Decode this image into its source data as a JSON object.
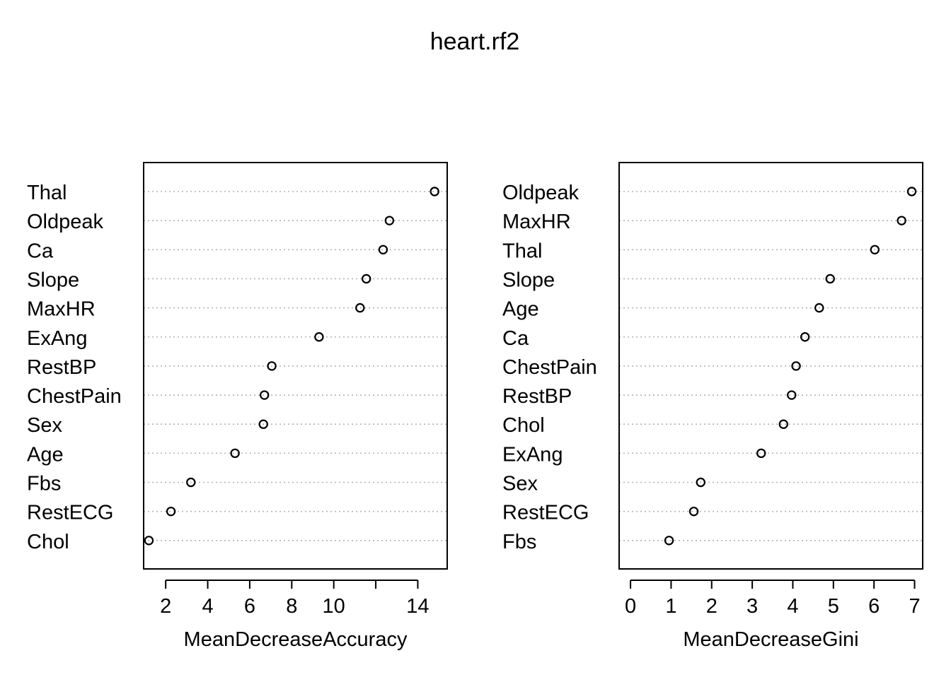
{
  "title": "heart.rf2",
  "chart_data": [
    {
      "type": "scatter",
      "xlabel": "MeanDecreaseAccuracy",
      "xlim": [
        0.95,
        15.4
      ],
      "xticks": [
        2,
        4,
        6,
        8,
        10,
        14
      ],
      "minor_ticks": [
        12
      ],
      "grid": "dotted horizontal",
      "categories": [
        "Thal",
        "Oldpeak",
        "Ca",
        "Slope",
        "MaxHR",
        "ExAng",
        "RestBP",
        "ChestPain",
        "Sex",
        "Age",
        "Fbs",
        "RestECG",
        "Chol"
      ],
      "values": [
        14.8,
        12.65,
        12.35,
        11.55,
        11.25,
        9.3,
        7.05,
        6.7,
        6.65,
        5.3,
        3.2,
        2.25,
        1.2
      ]
    },
    {
      "type": "scatter",
      "xlabel": "MeanDecreaseGini",
      "xlim": [
        -0.28,
        7.2
      ],
      "xticks": [
        0,
        1,
        2,
        3,
        4,
        5,
        6,
        7
      ],
      "minor_ticks": [],
      "grid": "dotted horizontal",
      "categories": [
        "Oldpeak",
        "MaxHR",
        "Thal",
        "Slope",
        "Age",
        "Ca",
        "ChestPain",
        "RestBP",
        "Chol",
        "ExAng",
        "Sex",
        "RestECG",
        "Fbs"
      ],
      "values": [
        6.93,
        6.68,
        6.02,
        4.92,
        4.65,
        4.3,
        4.08,
        3.97,
        3.77,
        3.22,
        1.73,
        1.56,
        0.95
      ]
    }
  ]
}
